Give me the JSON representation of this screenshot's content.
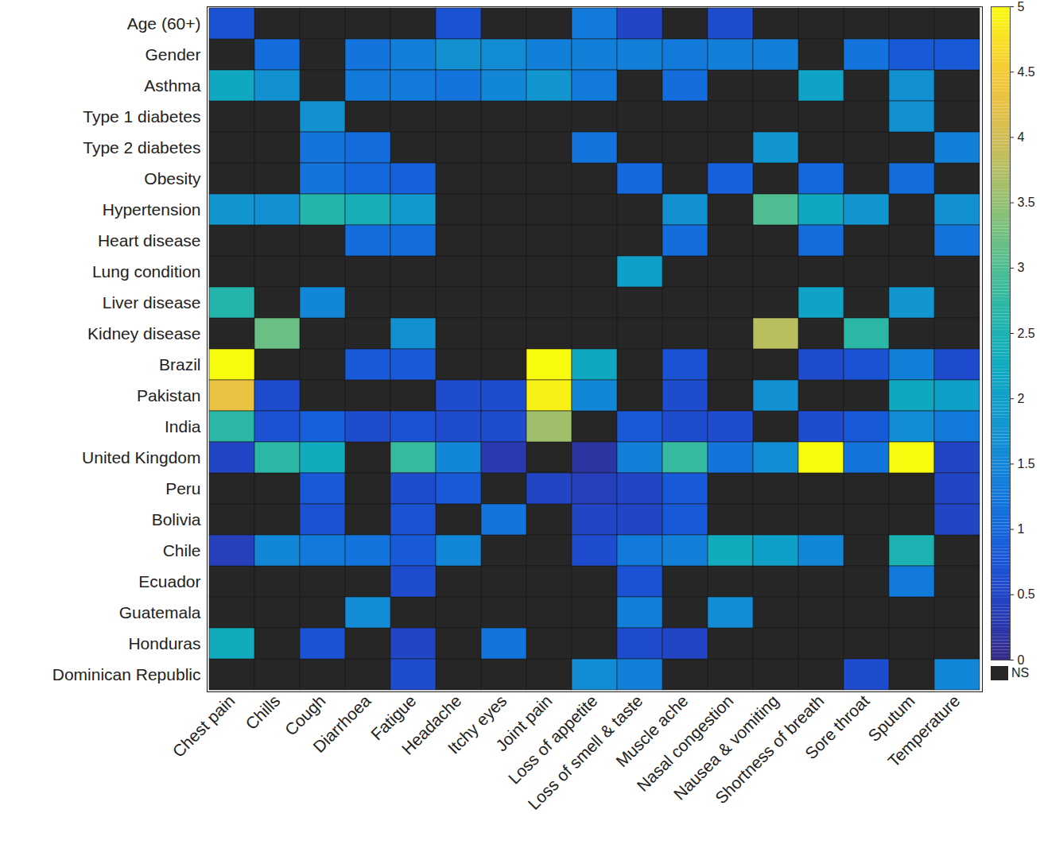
{
  "chart_data": {
    "type": "heatmap",
    "rows": [
      "Age (60+)",
      "Gender",
      "Asthma",
      "Type 1 diabetes",
      "Type 2 diabetes",
      "Obesity",
      "Hypertension",
      "Heart disease",
      "Lung condition",
      "Liver disease",
      "Kidney disease",
      "Brazil",
      "Pakistan",
      "India",
      "United Kingdom",
      "Peru",
      "Bolivia",
      "Chile",
      "Ecuador",
      "Guatemala",
      "Honduras",
      "Dominican Republic"
    ],
    "columns": [
      "Chest pain",
      "Chills",
      "Cough",
      "Diarrhoea",
      "Fatigue",
      "Headache",
      "Itchy eyes",
      "Joint pain",
      "Loss of appetite",
      "Loss of smell & taste",
      "Muscle ache",
      "Nasal congestion",
      "Nausea & vomiting",
      "Shortness of breath",
      "Sore throat",
      "Sputum",
      "Temperature"
    ],
    "values": [
      [
        0.7,
        null,
        null,
        null,
        null,
        0.7,
        null,
        null,
        1.3,
        0.5,
        null,
        0.6,
        null,
        null,
        null,
        null,
        null
      ],
      [
        null,
        1.1,
        null,
        1.2,
        1.4,
        1.7,
        1.6,
        1.4,
        1.4,
        1.4,
        1.3,
        1.4,
        1.4,
        null,
        1.2,
        0.8,
        0.8
      ],
      [
        2.2,
        1.7,
        null,
        1.3,
        1.3,
        1.2,
        1.5,
        1.8,
        1.3,
        null,
        1.1,
        null,
        null,
        2.1,
        null,
        1.7,
        null
      ],
      [
        null,
        null,
        1.7,
        null,
        null,
        null,
        null,
        null,
        null,
        null,
        null,
        null,
        null,
        null,
        null,
        1.7,
        null
      ],
      [
        null,
        null,
        1.2,
        1.1,
        null,
        null,
        null,
        null,
        1.2,
        null,
        null,
        null,
        1.8,
        null,
        null,
        null,
        1.4
      ],
      [
        null,
        null,
        1.2,
        1.0,
        0.9,
        null,
        null,
        null,
        null,
        1.0,
        null,
        0.9,
        null,
        1.0,
        null,
        1.1,
        null
      ],
      [
        1.8,
        1.7,
        2.6,
        2.4,
        1.9,
        null,
        null,
        null,
        null,
        null,
        1.7,
        null,
        3.0,
        2.2,
        1.8,
        null,
        1.7
      ],
      [
        null,
        null,
        null,
        1.1,
        1.1,
        null,
        null,
        null,
        null,
        null,
        1.1,
        null,
        null,
        1.1,
        null,
        null,
        1.2
      ],
      [
        null,
        null,
        null,
        null,
        null,
        null,
        null,
        null,
        null,
        2.0,
        null,
        null,
        null,
        null,
        null,
        null,
        null
      ],
      [
        2.6,
        null,
        1.5,
        null,
        null,
        null,
        null,
        null,
        null,
        null,
        null,
        null,
        null,
        2.1,
        null,
        1.8,
        null
      ],
      [
        null,
        3.2,
        null,
        null,
        1.7,
        null,
        null,
        null,
        null,
        null,
        null,
        null,
        3.8,
        null,
        2.7,
        null,
        null
      ],
      [
        5.0,
        null,
        null,
        0.8,
        0.8,
        null,
        null,
        5.0,
        2.2,
        null,
        0.7,
        null,
        null,
        0.6,
        0.7,
        1.4,
        0.6
      ],
      [
        4.3,
        0.6,
        null,
        null,
        null,
        0.6,
        0.6,
        4.9,
        1.5,
        null,
        0.6,
        null,
        1.7,
        null,
        null,
        2.2,
        2.0
      ],
      [
        2.7,
        0.7,
        0.9,
        0.6,
        0.7,
        0.6,
        0.6,
        3.6,
        null,
        0.8,
        0.6,
        0.6,
        null,
        0.6,
        0.8,
        1.6,
        1.3
      ],
      [
        0.5,
        2.7,
        2.3,
        null,
        2.8,
        1.5,
        0.3,
        null,
        0.2,
        1.4,
        2.8,
        1.2,
        1.6,
        5.0,
        1.2,
        5.0,
        0.5
      ],
      [
        null,
        null,
        0.8,
        null,
        0.6,
        0.8,
        null,
        0.5,
        0.4,
        0.5,
        0.8,
        null,
        null,
        null,
        null,
        null,
        0.5
      ],
      [
        null,
        null,
        0.7,
        null,
        0.7,
        null,
        1.2,
        null,
        0.5,
        0.5,
        0.8,
        null,
        null,
        null,
        null,
        null,
        0.5
      ],
      [
        0.4,
        1.5,
        1.3,
        1.2,
        0.8,
        1.5,
        null,
        null,
        0.6,
        1.3,
        1.4,
        2.3,
        2.0,
        1.5,
        null,
        2.5,
        null
      ],
      [
        null,
        null,
        null,
        null,
        0.6,
        null,
        null,
        null,
        null,
        0.7,
        null,
        null,
        null,
        null,
        null,
        1.3,
        null
      ],
      [
        null,
        null,
        null,
        1.6,
        null,
        null,
        null,
        null,
        null,
        1.4,
        null,
        1.6,
        null,
        null,
        null,
        null,
        null
      ],
      [
        2.3,
        null,
        0.7,
        null,
        0.5,
        null,
        1.2,
        null,
        null,
        0.6,
        0.5,
        null,
        null,
        null,
        null,
        null,
        null
      ],
      [
        null,
        null,
        null,
        null,
        0.6,
        null,
        null,
        null,
        1.6,
        1.4,
        null,
        null,
        null,
        null,
        0.6,
        null,
        1.5
      ]
    ],
    "colorbar": {
      "range": [
        0,
        5
      ],
      "ticks": [
        0,
        0.5,
        1,
        1.5,
        2,
        2.5,
        3,
        3.5,
        4,
        4.5,
        5
      ]
    },
    "na_label": "NS"
  }
}
